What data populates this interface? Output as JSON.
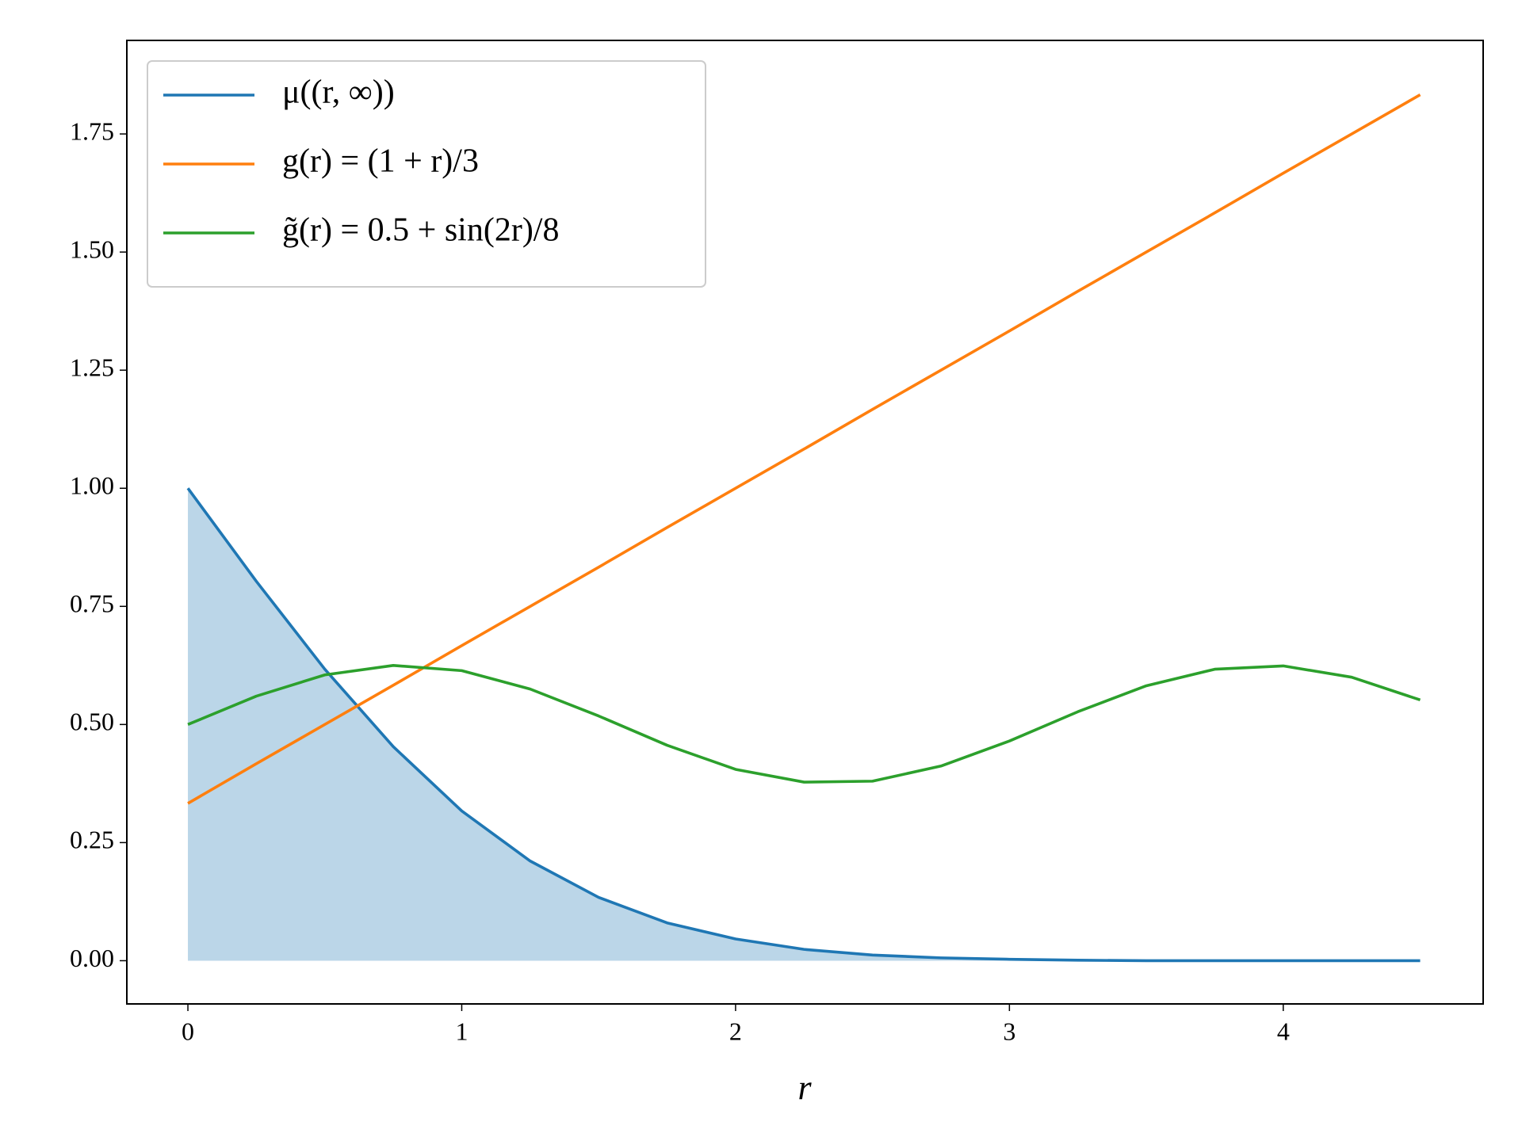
{
  "chart_data": {
    "type": "line",
    "xlabel": "r",
    "x": [
      0,
      0.25,
      0.5,
      0.75,
      1,
      1.25,
      1.5,
      1.75,
      2,
      2.25,
      2.5,
      2.75,
      3,
      3.25,
      3.5,
      3.75,
      4,
      4.25,
      4.5
    ],
    "series": [
      {
        "name": "μ((r, ∞))",
        "color": "#1f77b4",
        "fill": true,
        "values": [
          1.0,
          0.803,
          0.617,
          0.453,
          0.317,
          0.211,
          0.134,
          0.08,
          0.046,
          0.024,
          0.012,
          0.006,
          0.003,
          0.001,
          0,
          0,
          0,
          0,
          0
        ]
      },
      {
        "name": "g(r) = (1 + r)/3",
        "color": "#ff7f0e",
        "values": [
          0.333,
          0.417,
          0.5,
          0.583,
          0.667,
          0.75,
          0.833,
          0.917,
          1.0,
          1.083,
          1.167,
          1.25,
          1.333,
          1.417,
          1.5,
          1.583,
          1.667,
          1.75,
          1.833
        ]
      },
      {
        "name": "g̃(r) = 0.5 + sin(2r)/8",
        "color": "#2ca02c",
        "values": [
          0.5,
          0.56,
          0.605,
          0.625,
          0.614,
          0.575,
          0.518,
          0.456,
          0.405,
          0.378,
          0.38,
          0.412,
          0.465,
          0.527,
          0.582,
          0.617,
          0.624,
          0.6,
          0.552
        ]
      }
    ],
    "xlim": [
      -0.223,
      4.73
    ],
    "ylim": [
      -0.0915,
      1.948
    ],
    "xticks": [
      0,
      1,
      2,
      3,
      4
    ],
    "yticks": [
      {
        "value": 0,
        "label": "0.00"
      },
      {
        "value": 0.25,
        "label": "0.25"
      },
      {
        "value": 0.5,
        "label": "0.50"
      },
      {
        "value": 0.75,
        "label": "0.75"
      },
      {
        "value": 1,
        "label": "1.00"
      },
      {
        "value": 1.25,
        "label": "1.25"
      },
      {
        "value": 1.5,
        "label": "1.50"
      },
      {
        "value": 1.75,
        "label": "1.75"
      }
    ],
    "legend": "upper left",
    "grid": false
  }
}
